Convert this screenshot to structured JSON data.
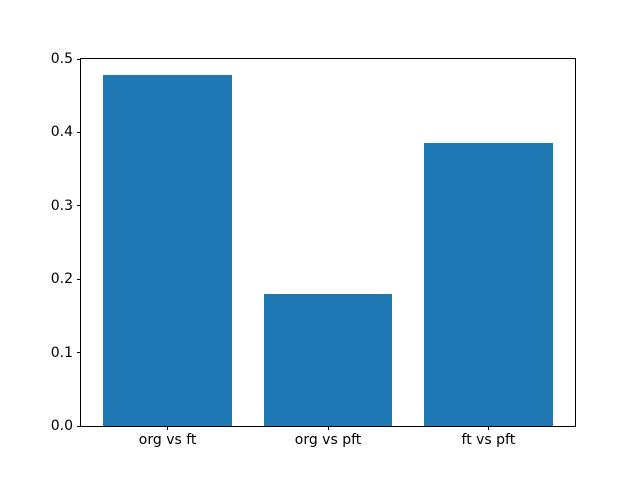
{
  "figure": {
    "background": "#ffffff",
    "axis_color": "#000000"
  },
  "chart_data": {
    "type": "bar",
    "title": "",
    "xlabel": "",
    "ylabel": "",
    "categories": [
      "org vs ft",
      "org vs pft",
      "ft vs pft"
    ],
    "values": [
      0.478,
      0.18,
      0.385
    ],
    "bar_color": "#1f77b4",
    "ylim": [
      0.0,
      0.5
    ],
    "yticks": [
      0.0,
      0.1,
      0.2,
      0.3,
      0.4,
      0.5
    ],
    "ytick_labels": [
      "0.0",
      "0.1",
      "0.2",
      "0.3",
      "0.4",
      "0.5"
    ],
    "grid": false,
    "legend": null,
    "bar_width_fraction": 0.8,
    "x_axis_padding_units": 0.54
  }
}
